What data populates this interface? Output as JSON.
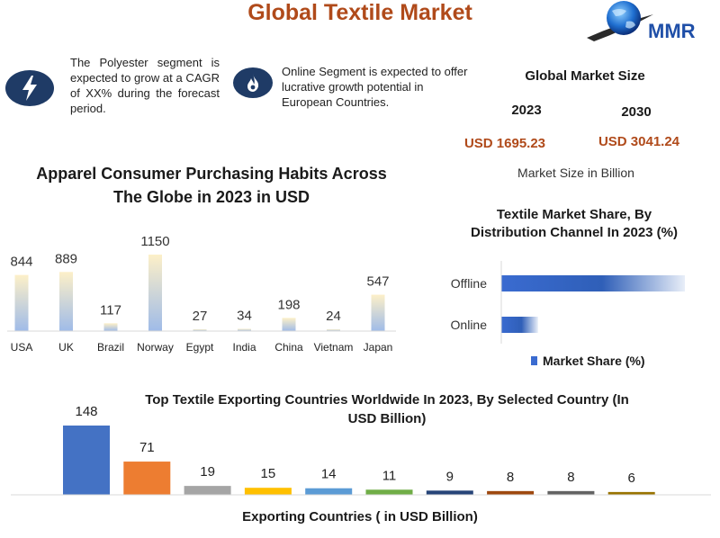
{
  "header": {
    "title": "Global Textile Market",
    "logo_text": "MMR"
  },
  "highlights": [
    {
      "icon": "lightning-bolt-icon",
      "text": "The Polyester segment is expected to grow at a CAGR of XX% during the forecast period."
    },
    {
      "icon": "flame-icon",
      "text": "Online Segment is expected to offer lucrative growth potential in European Countries."
    }
  ],
  "global_market_size": {
    "title": "Global Market Size",
    "year_1": "2023",
    "year_2": "2030",
    "value_1": "USD 1695.23",
    "value_2": "USD 3041.24",
    "unit_note": "Market Size in Billion"
  },
  "colors": {
    "title_accent": "#b04a1a",
    "icon_circle": "#1f3b66",
    "bar_blue": "#3a6bd0",
    "apparel_bar_top": "#fdf0c8",
    "apparel_bar_bottom": "#9fbbe8"
  },
  "chart_data": [
    {
      "type": "bar",
      "title": "Apparel Consumer Purchasing Habits Across The Globe in 2023 in USD",
      "categories": [
        "USA",
        "UK",
        "Brazil",
        "Norway",
        "Egypt",
        "India",
        "China",
        "Vietnam",
        "Japan"
      ],
      "values": [
        844,
        889,
        117,
        1150,
        27,
        34,
        198,
        24,
        547
      ],
      "data_labels": [
        "844",
        "889",
        "117",
        "1150",
        "27",
        "34",
        "198",
        "24",
        "547"
      ],
      "xlabel": "",
      "ylabel": "",
      "ylim": [
        0,
        1150
      ],
      "grid": false,
      "legend": "none"
    },
    {
      "type": "bar",
      "orientation": "horizontal",
      "title": "Textile Market Share, By Distribution Channel In 2023 (%)",
      "categories": [
        "Offline",
        "Online"
      ],
      "series": [
        {
          "name": "Market Share (%)",
          "values": [
            85,
            17
          ]
        }
      ],
      "xlim": [
        0,
        85
      ],
      "grid": false,
      "legend": "bottom"
    },
    {
      "type": "bar",
      "title": "Top Textile Exporting Countries Worldwide In 2023, By Selected Country (In USD Billion)",
      "xlabel": "Exporting Countries ( in USD Billion)",
      "values": [
        148,
        71,
        19,
        15,
        14,
        11,
        9,
        8,
        8,
        6
      ],
      "data_labels": [
        "148",
        "71",
        "19",
        "15",
        "14",
        "11",
        "9",
        "8",
        "8",
        "6"
      ],
      "bar_colors": [
        "#4472c4",
        "#ed7d31",
        "#a5a5a5",
        "#ffc000",
        "#5b9bd5",
        "#70ad47",
        "#264478",
        "#9e480e",
        "#636363",
        "#997300"
      ],
      "ylim": [
        0,
        148
      ],
      "grid": false,
      "legend": "none"
    }
  ]
}
